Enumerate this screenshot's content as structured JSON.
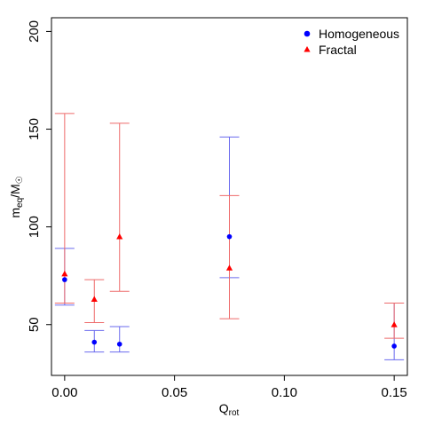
{
  "chart_data": {
    "type": "scatter",
    "xlabel": {
      "main": "Q",
      "sub": "rot"
    },
    "ylabel": {
      "main": "m",
      "sub": "eq",
      "suffix": "/M",
      "symbol": "☉"
    },
    "xlim": [
      -0.006,
      0.156
    ],
    "ylim": [
      24,
      207
    ],
    "xticks": [
      0.0,
      0.05,
      0.1,
      0.15
    ],
    "xtick_labels": [
      "0.00",
      "0.05",
      "0.10",
      "0.15"
    ],
    "yticks": [
      50,
      100,
      150,
      200
    ],
    "ytick_labels": [
      "50",
      "100",
      "150",
      "200"
    ],
    "grid": false,
    "legend_position": "top-right",
    "series": [
      {
        "name": "Homogeneous",
        "marker": "circle",
        "color": "#0000ff",
        "errcolor": "#6a6aee",
        "points": [
          {
            "x": 0.0,
            "y": 73,
            "lo": 60,
            "hi": 89
          },
          {
            "x": 0.0135,
            "y": 41,
            "lo": 36,
            "hi": 47
          },
          {
            "x": 0.025,
            "y": 40,
            "lo": 36,
            "hi": 49
          },
          {
            "x": 0.075,
            "y": 95,
            "lo": 74,
            "hi": 146
          },
          {
            "x": 0.15,
            "y": 39,
            "lo": 32,
            "hi": 61
          }
        ]
      },
      {
        "name": "Fractal",
        "marker": "triangle",
        "color": "#ff0000",
        "errcolor": "#ee6a6a",
        "points": [
          {
            "x": 0.0,
            "y": 76,
            "lo": 61,
            "hi": 158
          },
          {
            "x": 0.0135,
            "y": 63,
            "lo": 51,
            "hi": 73
          },
          {
            "x": 0.025,
            "y": 95,
            "lo": 67,
            "hi": 153
          },
          {
            "x": 0.075,
            "y": 79,
            "lo": 53,
            "hi": 116
          },
          {
            "x": 0.15,
            "y": 50,
            "lo": 43,
            "hi": 61
          }
        ]
      }
    ]
  }
}
